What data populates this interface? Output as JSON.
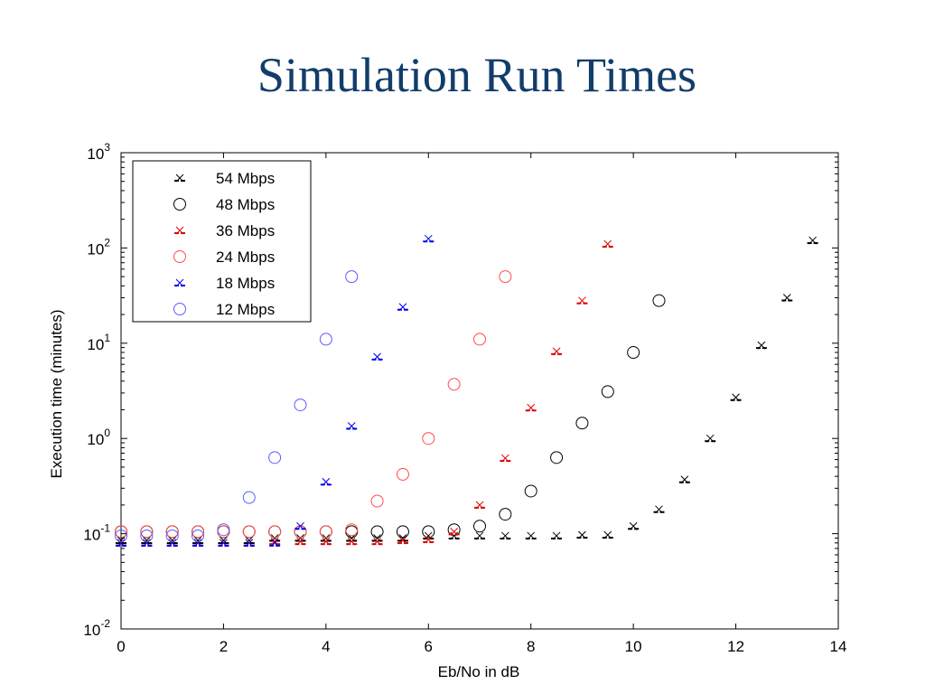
{
  "slide": {
    "title": "Simulation Run Times"
  },
  "chart_data": {
    "type": "scatter",
    "xlabel": "Eb/No in dB",
    "ylabel": "Execution time (minutes)",
    "xlim": [
      0,
      14
    ],
    "ylim": [
      0.01,
      1000
    ],
    "yscale": "log",
    "grid": false,
    "legend_position": "top-left",
    "x_ticks": [
      "0",
      "2",
      "4",
      "6",
      "8",
      "10",
      "12",
      "14"
    ],
    "y_ticks": [
      {
        "base": "10",
        "exp": "-2"
      },
      {
        "base": "10",
        "exp": "-1"
      },
      {
        "base": "10",
        "exp": "0"
      },
      {
        "base": "10",
        "exp": "1"
      },
      {
        "base": "10",
        "exp": "2"
      },
      {
        "base": "10",
        "exp": "3"
      }
    ],
    "series": [
      {
        "name": "54 Mbps",
        "marker": "x--",
        "color": "#000000",
        "x": [
          0,
          0.5,
          1,
          1.5,
          2,
          2.5,
          3,
          3.5,
          4,
          4.5,
          5,
          5.5,
          6,
          6.5,
          7,
          7.5,
          8,
          8.5,
          9,
          9.5,
          10,
          10.5,
          11,
          11.5,
          12,
          12.5,
          13,
          13.5
        ],
        "y": [
          0.085,
          0.085,
          0.085,
          0.085,
          0.085,
          0.085,
          0.09,
          0.09,
          0.09,
          0.09,
          0.09,
          0.09,
          0.095,
          0.095,
          0.095,
          0.095,
          0.095,
          0.095,
          0.097,
          0.097,
          0.12,
          0.18,
          0.37,
          1.0,
          2.7,
          9.5,
          30,
          120
        ]
      },
      {
        "name": "48 Mbps",
        "marker": "o",
        "color": "#000000",
        "x": [
          0,
          0.5,
          1,
          1.5,
          2,
          2.5,
          3,
          3.5,
          4,
          4.5,
          5,
          5.5,
          6,
          6.5,
          7,
          7.5,
          8,
          8.5,
          9,
          9.5,
          10,
          10.5
        ],
        "y": [
          0.105,
          0.105,
          0.105,
          0.105,
          0.105,
          0.105,
          0.105,
          0.105,
          0.105,
          0.105,
          0.105,
          0.105,
          0.105,
          0.11,
          0.12,
          0.16,
          0.28,
          0.63,
          1.45,
          3.1,
          8.0,
          28
        ]
      },
      {
        "name": "36 Mbps",
        "marker": "x--",
        "color": "#e00000",
        "x": [
          0,
          0.5,
          1,
          1.5,
          2,
          2.5,
          3,
          3.5,
          4,
          4.5,
          5,
          5.5,
          6,
          6.5,
          7,
          7.5,
          8,
          8.5,
          9,
          9.5
        ],
        "y": [
          0.08,
          0.08,
          0.08,
          0.08,
          0.08,
          0.08,
          0.083,
          0.083,
          0.083,
          0.083,
          0.083,
          0.085,
          0.087,
          0.105,
          0.2,
          0.62,
          2.1,
          8.2,
          28,
          110
        ]
      },
      {
        "name": "24 Mbps",
        "marker": "o",
        "color": "#ff4d4d",
        "x": [
          0,
          0.5,
          1,
          1.5,
          2,
          2.5,
          3,
          3.5,
          4,
          4.5,
          5,
          5.5,
          6,
          6.5,
          7,
          7.5
        ],
        "y": [
          0.105,
          0.105,
          0.105,
          0.105,
          0.105,
          0.105,
          0.105,
          0.105,
          0.105,
          0.11,
          0.22,
          0.42,
          1.0,
          3.7,
          11,
          50
        ]
      },
      {
        "name": "18 Mbps",
        "marker": "x--",
        "color": "#0000ee",
        "x": [
          0,
          0.5,
          1,
          1.5,
          2,
          2.5,
          3,
          3.5,
          4,
          4.5,
          5,
          5.5,
          6
        ],
        "y": [
          0.08,
          0.08,
          0.08,
          0.08,
          0.08,
          0.08,
          0.08,
          0.12,
          0.35,
          1.35,
          7.2,
          24,
          125
        ]
      },
      {
        "name": "12 Mbps",
        "marker": "o",
        "color": "#5c5cff",
        "x": [
          0,
          0.5,
          1,
          1.5,
          2,
          2.5,
          3,
          3.5,
          4,
          4.5
        ],
        "y": [
          0.095,
          0.095,
          0.095,
          0.095,
          0.11,
          0.24,
          0.63,
          2.25,
          11,
          50
        ]
      }
    ]
  }
}
